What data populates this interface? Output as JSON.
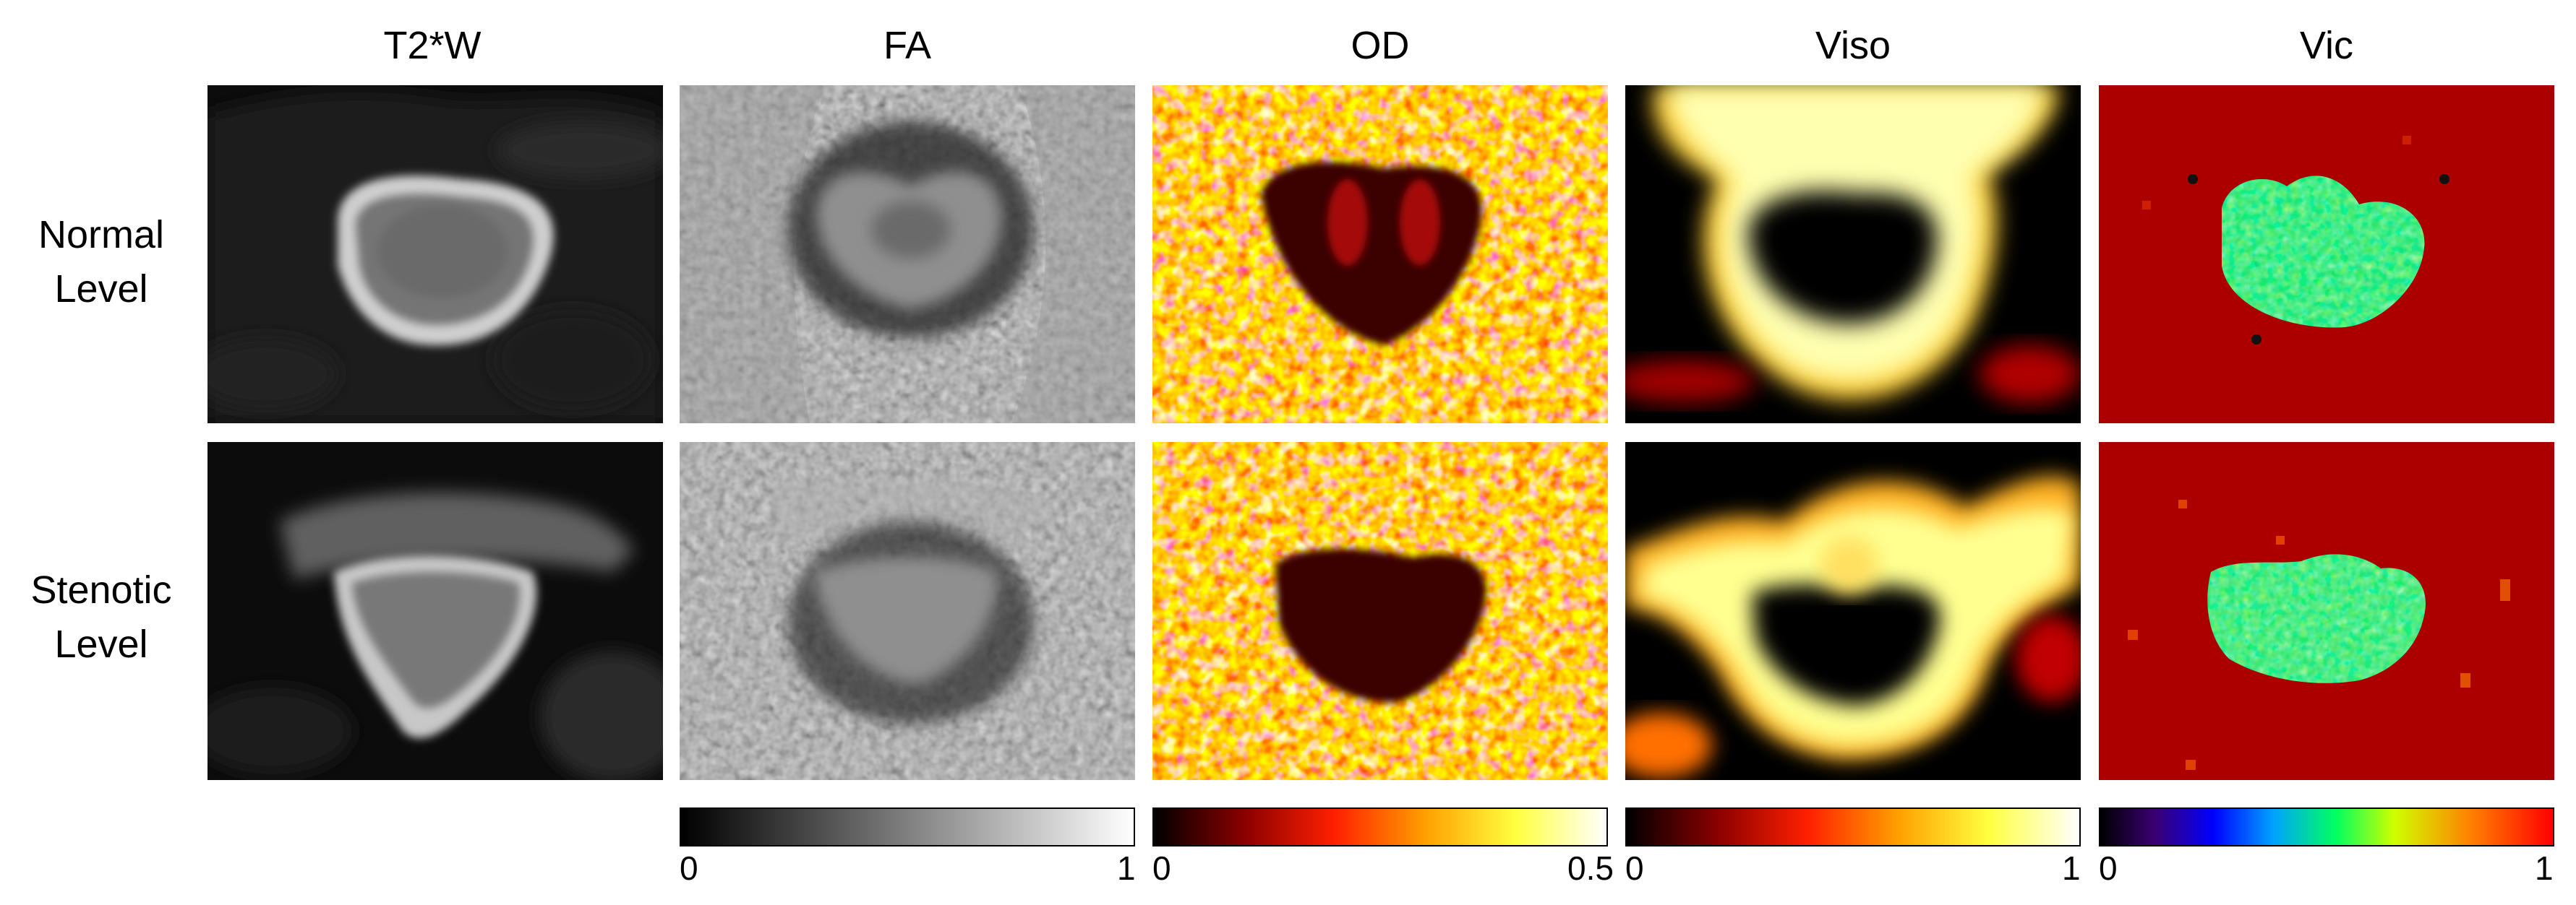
{
  "columns": [
    {
      "title": "T2*W"
    },
    {
      "title": "FA"
    },
    {
      "title": "OD"
    },
    {
      "title": "Viso"
    },
    {
      "title": "Vic"
    }
  ],
  "rows": [
    {
      "label_line1": "Normal",
      "label_line2": "Level"
    },
    {
      "label_line1": "Stenotic",
      "label_line2": "Level"
    }
  ],
  "colorbars": [
    {
      "map": "FA",
      "min": "0",
      "max": "1",
      "colormap": "gray",
      "colors": [
        "#000000",
        "#ffffff"
      ]
    },
    {
      "map": "OD",
      "min": "0",
      "max": "0.5",
      "colormap": "hot",
      "colors": [
        "#000000",
        "#8b0000",
        "#ff2000",
        "#ffa000",
        "#ffff40",
        "#ffffff"
      ]
    },
    {
      "map": "Viso",
      "min": "0",
      "max": "1",
      "colormap": "hot",
      "colors": [
        "#000000",
        "#8b0000",
        "#ff2000",
        "#ffa000",
        "#ffff40",
        "#ffffff"
      ]
    },
    {
      "map": "Vic",
      "min": "0",
      "max": "1",
      "colormap": "jet",
      "colors": [
        "#000000",
        "#3b0070",
        "#0000ff",
        "#00a0ff",
        "#00ff60",
        "#d0ff00",
        "#ff8000",
        "#ff0000"
      ]
    }
  ]
}
